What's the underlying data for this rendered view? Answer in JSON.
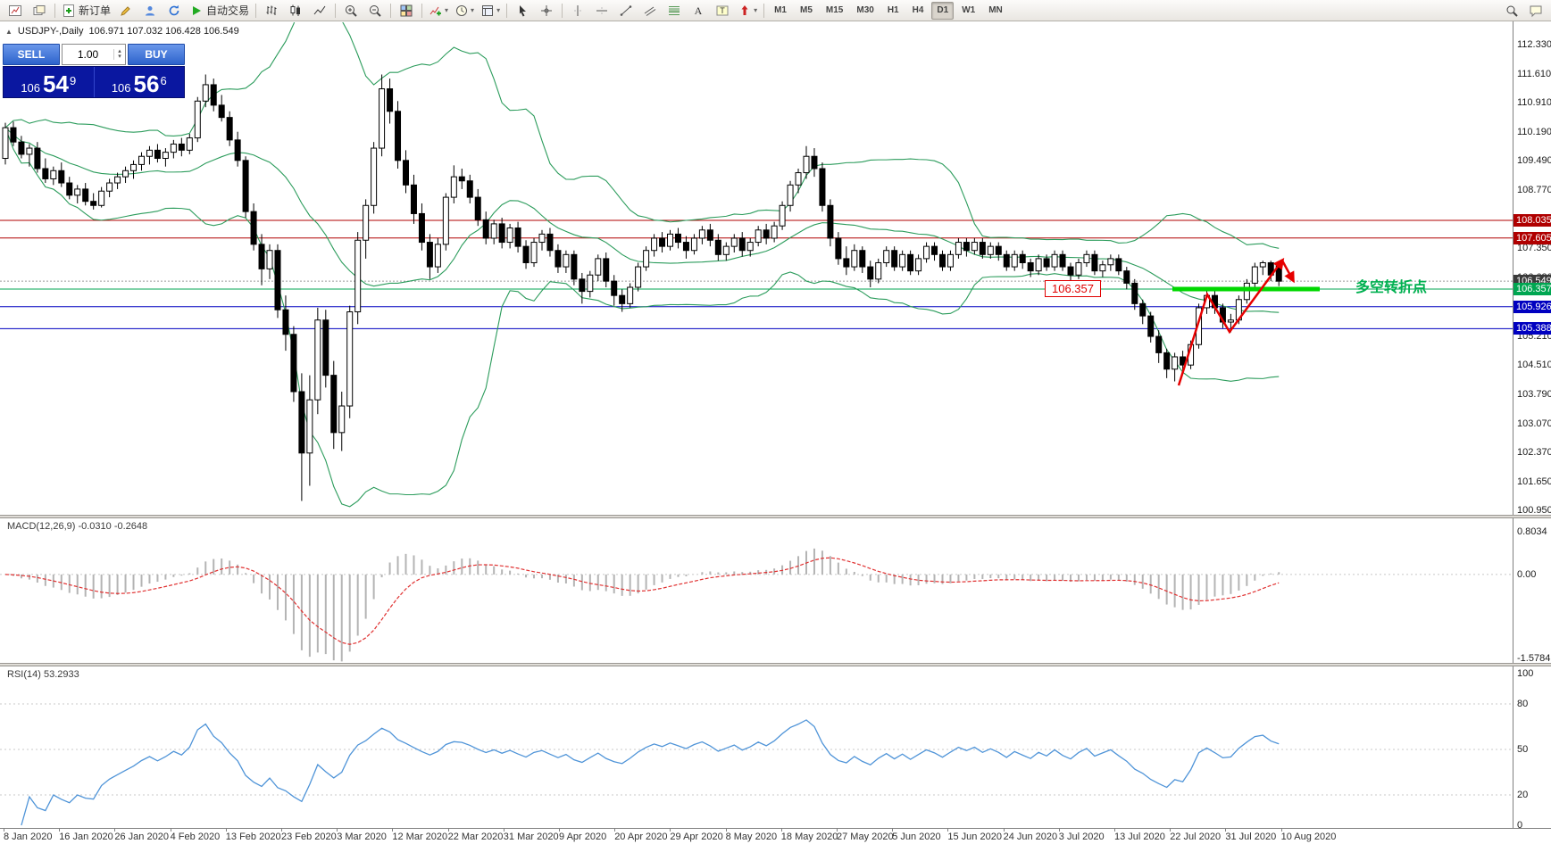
{
  "toolbar": {
    "items": [
      {
        "name": "new-chart-icon"
      },
      {
        "name": "profiles-icon"
      },
      {
        "sep": true
      },
      {
        "name": "new-order-icon",
        "label": "新订单"
      },
      {
        "name": "metaeditor-icon"
      },
      {
        "name": "market-watch-icon"
      },
      {
        "name": "refresh-icon"
      },
      {
        "name": "autotrading-icon",
        "label": "自动交易"
      },
      {
        "sep": true
      },
      {
        "name": "bar-chart-icon"
      },
      {
        "name": "candlestick-chart-icon"
      },
      {
        "name": "line-chart-icon"
      },
      {
        "sep": true
      },
      {
        "name": "zoom-in-icon"
      },
      {
        "name": "zoom-out-icon"
      },
      {
        "sep": true
      },
      {
        "name": "tile-windows-icon"
      },
      {
        "sep": true
      },
      {
        "name": "new-indicator-icon",
        "dropdown": true
      },
      {
        "name": "cycles-icon",
        "dropdown": true
      },
      {
        "name": "templates-icon",
        "dropdown": true
      },
      {
        "sep": true
      },
      {
        "name": "cursor-icon"
      },
      {
        "name": "crosshair-icon"
      },
      {
        "sep": true
      },
      {
        "name": "vertical-line-icon"
      },
      {
        "name": "horizontal-line-icon"
      },
      {
        "name": "trendline-icon"
      },
      {
        "name": "equidistant-channel-icon"
      },
      {
        "name": "fibonacci-icon"
      },
      {
        "name": "text-icon"
      },
      {
        "name": "text-label-icon"
      },
      {
        "name": "arrows-icon",
        "dropdown": true
      },
      {
        "sep": true
      }
    ],
    "timeframes": [
      "M1",
      "M5",
      "M15",
      "M30",
      "H1",
      "H4",
      "D1",
      "W1",
      "MN"
    ],
    "active_timeframe": "D1",
    "right_items": [
      "search-icon",
      "chat-icon"
    ]
  },
  "chart_header": {
    "symbol": "USDJPY-,Daily",
    "ohlc": "106.971 107.032 106.428 106.549"
  },
  "trade_panel": {
    "sell_label": "SELL",
    "buy_label": "BUY",
    "volume": "1.00",
    "sell_price": {
      "prefix": "106",
      "big": "54",
      "sup": "9"
    },
    "buy_price": {
      "prefix": "106",
      "big": "56",
      "sup": "6"
    }
  },
  "annotations": {
    "price_box_label": "106.357",
    "turning_point_text": "多空转折点"
  },
  "macd_panel": {
    "title": "MACD(12,26,9) -0.0310 -0.2648"
  },
  "rsi_panel": {
    "title": "RSI(14) 53.2933"
  },
  "chart_data": {
    "type": "candlestick",
    "symbol": "USDJPY-",
    "period": "Daily",
    "ohlc_current": {
      "open": 106.971,
      "high": 107.032,
      "low": 106.428,
      "close": 106.549
    },
    "bid_line": {
      "price": 106.549,
      "label": "106.549",
      "color": "#3a3a3a"
    },
    "price_axis_ticks": [
      "112.330",
      "111.610",
      "110.910",
      "110.190",
      "109.490",
      "108.770",
      "107.350",
      "106.630",
      "105.210",
      "104.510",
      "103.790",
      "103.070",
      "102.370",
      "101.650",
      "100.950"
    ],
    "price_markers": [
      {
        "label": "108.035",
        "price": 108.035,
        "color": "#b00000"
      },
      {
        "label": "107.605",
        "price": 107.605,
        "color": "#b00000"
      },
      {
        "label": "106.549",
        "price": 106.549,
        "color": "#3a3a3a"
      },
      {
        "label": "106.357",
        "price": 106.357,
        "color": "#00a651"
      },
      {
        "label": "105.926",
        "price": 105.926,
        "color": "#0000c0"
      },
      {
        "label": "105.388",
        "price": 105.388,
        "color": "#0000c0"
      }
    ],
    "hlines": [
      {
        "price": 108.035,
        "color": "#b00000"
      },
      {
        "price": 107.605,
        "color": "#b00000"
      },
      {
        "price": 106.357,
        "color": "#00a651"
      },
      {
        "price": 105.926,
        "color": "#0000c0"
      },
      {
        "price": 105.388,
        "color": "#0000c0"
      }
    ],
    "support_segment": {
      "price": 106.357,
      "color": "#00d800"
    },
    "indicators": {
      "bollinger": {
        "period": 20,
        "deviation": 2,
        "color": "#2c9c5c"
      },
      "macd": {
        "fast": 12,
        "slow": 26,
        "signal": 9,
        "value": -0.031,
        "signal_value": -0.2648,
        "axis": [
          {
            "value": 0.8034,
            "label": "0.8034"
          },
          {
            "value": 0,
            "label": "0.00"
          },
          {
            "value": -1.5784,
            "label": "-1.5784"
          }
        ]
      },
      "rsi": {
        "period": 14,
        "value": 53.2933,
        "levels": [
          80,
          50,
          20
        ],
        "axis": [
          {
            "value": 100,
            "label": "100"
          },
          {
            "value": 80,
            "label": "80"
          },
          {
            "value": 50,
            "label": "50"
          },
          {
            "value": 20,
            "label": "20"
          },
          {
            "value": 0,
            "label": "0"
          }
        ]
      }
    },
    "dates": [
      "8 Jan 2020",
      "16 Jan 2020",
      "26 Jan 2020",
      "4 Feb 2020",
      "13 Feb 2020",
      "23 Feb 2020",
      "3 Mar 2020",
      "12 Mar 2020",
      "22 Mar 2020",
      "31 Mar 2020",
      "9 Apr 2020",
      "20 Apr 2020",
      "29 Apr 2020",
      "8 May 2020",
      "18 May 2020",
      "27 May 2020",
      "5 Jun 2020",
      "15 Jun 2020",
      "24 Jun 2020",
      "3 Jul 2020",
      "13 Jul 2020",
      "22 Jul 2020",
      "31 Jul 2020",
      "10 Aug 2020"
    ],
    "candles": [
      [
        109.55,
        110.42,
        109.4,
        110.3
      ],
      [
        110.3,
        110.45,
        109.85,
        109.95
      ],
      [
        109.95,
        110.1,
        109.55,
        109.65
      ],
      [
        109.65,
        109.9,
        109.35,
        109.8
      ],
      [
        109.8,
        109.95,
        109.2,
        109.3
      ],
      [
        109.3,
        109.55,
        108.95,
        109.05
      ],
      [
        109.05,
        109.35,
        108.9,
        109.25
      ],
      [
        109.25,
        109.45,
        108.85,
        108.95
      ],
      [
        108.95,
        109.1,
        108.55,
        108.65
      ],
      [
        108.65,
        108.9,
        108.45,
        108.8
      ],
      [
        108.8,
        108.95,
        108.4,
        108.5
      ],
      [
        108.5,
        108.7,
        108.3,
        108.4
      ],
      [
        108.4,
        108.85,
        108.35,
        108.75
      ],
      [
        108.75,
        109.05,
        108.6,
        108.95
      ],
      [
        108.95,
        109.2,
        108.8,
        109.1
      ],
      [
        109.1,
        109.35,
        108.95,
        109.25
      ],
      [
        109.25,
        109.5,
        109.05,
        109.4
      ],
      [
        109.4,
        109.7,
        109.25,
        109.6
      ],
      [
        109.6,
        109.85,
        109.4,
        109.75
      ],
      [
        109.75,
        109.9,
        109.45,
        109.55
      ],
      [
        109.55,
        109.8,
        109.35,
        109.7
      ],
      [
        109.7,
        110.0,
        109.55,
        109.9
      ],
      [
        109.9,
        110.05,
        109.6,
        109.75
      ],
      [
        109.75,
        110.15,
        109.65,
        110.05
      ],
      [
        110.05,
        111.05,
        109.95,
        110.95
      ],
      [
        110.95,
        111.6,
        110.8,
        111.35
      ],
      [
        111.35,
        111.5,
        110.7,
        110.85
      ],
      [
        110.85,
        111.1,
        110.45,
        110.55
      ],
      [
        110.55,
        110.7,
        109.85,
        110.0
      ],
      [
        110.0,
        110.2,
        109.35,
        109.5
      ],
      [
        109.5,
        109.6,
        108.1,
        108.25
      ],
      [
        108.25,
        108.45,
        107.3,
        107.45
      ],
      [
        107.45,
        107.7,
        106.45,
        106.85
      ],
      [
        106.85,
        107.45,
        106.6,
        107.3
      ],
      [
        107.3,
        107.45,
        105.65,
        105.85
      ],
      [
        105.85,
        106.2,
        104.85,
        105.25
      ],
      [
        105.25,
        105.45,
        103.6,
        103.85
      ],
      [
        103.85,
        104.3,
        101.18,
        102.35
      ],
      [
        102.35,
        104.25,
        101.55,
        103.65
      ],
      [
        103.65,
        105.9,
        103.3,
        105.6
      ],
      [
        105.6,
        105.85,
        103.95,
        104.25
      ],
      [
        104.25,
        104.6,
        102.45,
        102.85
      ],
      [
        102.85,
        103.85,
        102.4,
        103.5
      ],
      [
        103.5,
        105.95,
        103.2,
        105.8
      ],
      [
        105.8,
        107.75,
        105.5,
        107.55
      ],
      [
        107.55,
        108.55,
        107.1,
        108.4
      ],
      [
        108.4,
        109.95,
        108.2,
        109.8
      ],
      [
        109.8,
        111.6,
        109.6,
        111.25
      ],
      [
        111.25,
        111.5,
        110.4,
        110.7
      ],
      [
        110.7,
        110.95,
        109.3,
        109.5
      ],
      [
        109.5,
        109.75,
        108.7,
        108.9
      ],
      [
        108.9,
        109.15,
        107.95,
        108.2
      ],
      [
        108.2,
        108.45,
        107.3,
        107.5
      ],
      [
        107.5,
        107.7,
        106.6,
        106.9
      ],
      [
        106.9,
        107.6,
        106.75,
        107.45
      ],
      [
        107.45,
        108.7,
        107.3,
        108.6
      ],
      [
        108.6,
        109.38,
        108.45,
        109.1
      ],
      [
        109.1,
        109.3,
        108.8,
        109.0
      ],
      [
        109.0,
        109.15,
        108.45,
        108.6
      ],
      [
        108.6,
        108.8,
        107.9,
        108.05
      ],
      [
        108.05,
        108.25,
        107.45,
        107.6
      ],
      [
        107.6,
        108.05,
        107.45,
        107.95
      ],
      [
        107.95,
        108.1,
        107.35,
        107.5
      ],
      [
        107.5,
        107.95,
        107.35,
        107.85
      ],
      [
        107.85,
        108.0,
        107.25,
        107.4
      ],
      [
        107.4,
        107.55,
        106.85,
        107.0
      ],
      [
        107.0,
        107.6,
        106.9,
        107.5
      ],
      [
        107.5,
        107.8,
        107.3,
        107.7
      ],
      [
        107.7,
        107.85,
        107.15,
        107.3
      ],
      [
        107.3,
        107.45,
        106.75,
        106.9
      ],
      [
        106.9,
        107.3,
        106.75,
        107.2
      ],
      [
        107.2,
        107.3,
        106.45,
        106.6
      ],
      [
        106.6,
        106.75,
        106.0,
        106.3
      ],
      [
        106.3,
        106.8,
        106.15,
        106.7
      ],
      [
        106.7,
        107.2,
        106.55,
        107.1
      ],
      [
        107.1,
        107.25,
        106.4,
        106.55
      ],
      [
        106.55,
        106.7,
        105.95,
        106.2
      ],
      [
        106.2,
        106.35,
        105.8,
        106.0
      ],
      [
        106.0,
        106.5,
        105.9,
        106.4
      ],
      [
        106.4,
        107.0,
        106.3,
        106.9
      ],
      [
        106.9,
        107.4,
        106.8,
        107.3
      ],
      [
        107.3,
        107.7,
        107.15,
        107.6
      ],
      [
        107.6,
        107.75,
        107.25,
        107.4
      ],
      [
        107.4,
        107.8,
        107.3,
        107.7
      ],
      [
        107.7,
        107.85,
        107.35,
        107.5
      ],
      [
        107.5,
        107.65,
        107.1,
        107.3
      ],
      [
        107.3,
        107.7,
        107.2,
        107.6
      ],
      [
        107.6,
        107.9,
        107.45,
        107.8
      ],
      [
        107.8,
        107.95,
        107.4,
        107.55
      ],
      [
        107.55,
        107.7,
        107.05,
        107.2
      ],
      [
        107.2,
        107.5,
        107.05,
        107.4
      ],
      [
        107.4,
        107.7,
        107.25,
        107.6
      ],
      [
        107.6,
        107.75,
        107.15,
        107.3
      ],
      [
        107.3,
        107.6,
        107.15,
        107.5
      ],
      [
        107.5,
        107.9,
        107.4,
        107.8
      ],
      [
        107.8,
        107.95,
        107.45,
        107.6
      ],
      [
        107.6,
        108.0,
        107.5,
        107.9
      ],
      [
        107.9,
        108.5,
        107.8,
        108.4
      ],
      [
        108.4,
        109.0,
        108.25,
        108.9
      ],
      [
        108.9,
        109.3,
        108.7,
        109.2
      ],
      [
        109.2,
        109.85,
        109.05,
        109.6
      ],
      [
        109.6,
        109.8,
        109.1,
        109.3
      ],
      [
        109.3,
        109.45,
        108.25,
        108.4
      ],
      [
        108.4,
        108.55,
        107.4,
        107.6
      ],
      [
        107.6,
        107.75,
        106.95,
        107.1
      ],
      [
        107.1,
        107.4,
        106.7,
        106.9
      ],
      [
        106.9,
        107.45,
        106.8,
        107.3
      ],
      [
        107.3,
        107.4,
        106.75,
        106.9
      ],
      [
        106.9,
        107.05,
        106.4,
        106.6
      ],
      [
        106.6,
        107.1,
        106.5,
        107.0
      ],
      [
        107.0,
        107.4,
        106.9,
        107.3
      ],
      [
        107.3,
        107.4,
        106.8,
        106.9
      ],
      [
        106.9,
        107.3,
        106.8,
        107.2
      ],
      [
        107.2,
        107.3,
        106.7,
        106.8
      ],
      [
        106.8,
        107.2,
        106.7,
        107.1
      ],
      [
        107.1,
        107.5,
        107.0,
        107.4
      ],
      [
        107.4,
        107.5,
        107.05,
        107.2
      ],
      [
        107.2,
        107.3,
        106.8,
        106.9
      ],
      [
        106.9,
        107.3,
        106.8,
        107.2
      ],
      [
        107.2,
        107.6,
        107.1,
        107.5
      ],
      [
        107.5,
        107.6,
        107.15,
        107.3
      ],
      [
        107.3,
        107.6,
        107.2,
        107.5
      ],
      [
        107.5,
        107.6,
        107.1,
        107.2
      ],
      [
        107.2,
        107.5,
        107.1,
        107.4
      ],
      [
        107.4,
        107.5,
        107.05,
        107.2
      ],
      [
        107.2,
        107.3,
        106.8,
        106.9
      ],
      [
        106.9,
        107.3,
        106.8,
        107.2
      ],
      [
        107.2,
        107.3,
        106.85,
        107.0
      ],
      [
        107.0,
        107.1,
        106.65,
        106.8
      ],
      [
        106.8,
        107.2,
        106.7,
        107.1
      ],
      [
        107.1,
        107.2,
        106.8,
        106.9
      ],
      [
        106.9,
        107.3,
        106.8,
        107.2
      ],
      [
        107.2,
        107.3,
        106.8,
        106.9
      ],
      [
        106.9,
        107.0,
        106.55,
        106.7
      ],
      [
        106.7,
        107.1,
        106.6,
        107.0
      ],
      [
        107.0,
        107.3,
        106.9,
        107.2
      ],
      [
        107.2,
        107.3,
        106.7,
        106.8
      ],
      [
        106.8,
        107.05,
        106.65,
        106.95
      ],
      [
        106.95,
        107.2,
        106.8,
        107.1
      ],
      [
        107.1,
        107.2,
        106.7,
        106.8
      ],
      [
        106.8,
        106.9,
        106.35,
        106.5
      ],
      [
        106.5,
        106.6,
        105.85,
        106.0
      ],
      [
        106.0,
        106.1,
        105.5,
        105.7
      ],
      [
        105.7,
        105.8,
        105.05,
        105.2
      ],
      [
        105.2,
        105.35,
        104.55,
        104.8
      ],
      [
        104.8,
        104.9,
        104.18,
        104.4
      ],
      [
        104.4,
        104.8,
        104.1,
        104.7
      ],
      [
        104.7,
        104.85,
        104.35,
        104.5
      ],
      [
        104.5,
        105.1,
        104.4,
        105.0
      ],
      [
        105.0,
        106.0,
        104.9,
        105.9
      ],
      [
        105.9,
        106.4,
        105.75,
        106.2
      ],
      [
        106.2,
        106.35,
        105.75,
        105.9
      ],
      [
        105.9,
        106.0,
        105.4,
        105.55
      ],
      [
        105.55,
        105.75,
        105.3,
        105.6
      ],
      [
        105.6,
        106.2,
        105.5,
        106.1
      ],
      [
        106.1,
        106.6,
        106.0,
        106.5
      ],
      [
        106.5,
        107.0,
        106.4,
        106.9
      ],
      [
        106.9,
        107.05,
        106.7,
        107.0
      ],
      [
        107.0,
        107.05,
        106.55,
        106.7
      ],
      [
        106.971,
        107.032,
        106.428,
        106.549
      ]
    ]
  }
}
